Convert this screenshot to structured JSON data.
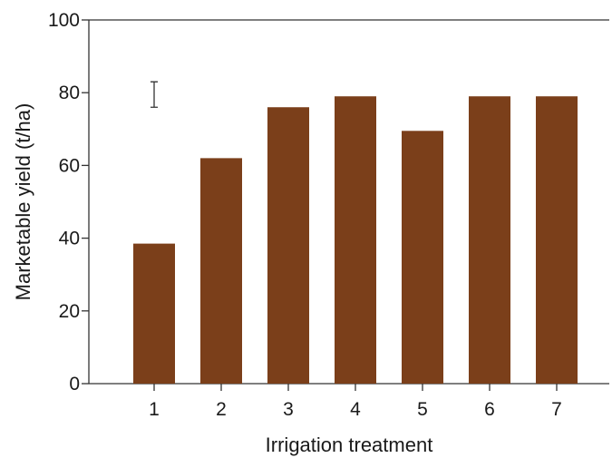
{
  "chart_data": {
    "type": "bar",
    "categories": [
      "1",
      "2",
      "3",
      "4",
      "5",
      "6",
      "7"
    ],
    "values": [
      38.5,
      62,
      76,
      79,
      69.5,
      79,
      79
    ],
    "xlabel": "Irrigation treatment",
    "ylabel": "Marketable yield (t/ha)",
    "ylim": [
      0,
      100
    ],
    "yticks": [
      0,
      20,
      40,
      60,
      80,
      100
    ],
    "grid": false,
    "legend": "none",
    "error_bar": {
      "category": "1",
      "y_low": 76,
      "y_high": 83
    },
    "colors": {
      "bar": "#7b3f1a",
      "axis": "#333333",
      "text": "#1a1a1a"
    }
  }
}
